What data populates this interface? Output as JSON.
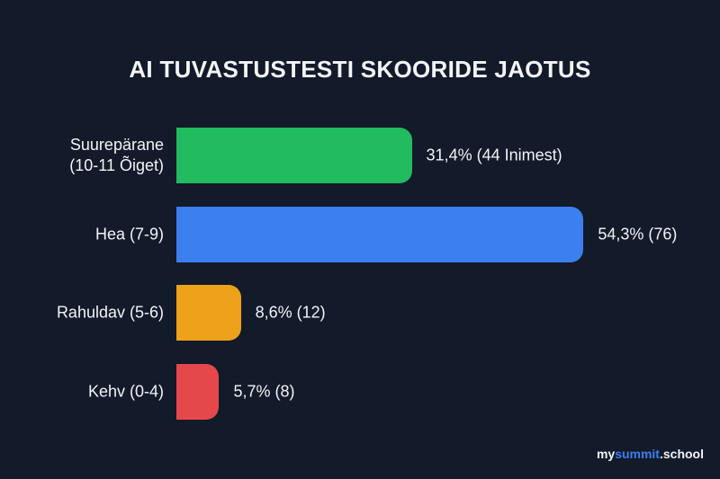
{
  "chart_data": {
    "type": "bar",
    "orientation": "horizontal",
    "title": "AI TUVASTUSTESTI SKOORIDE JAOTUS",
    "categories": [
      "Suurepärane\n(10-11 Õiget)",
      "Hea (7-9)",
      "Rahuldav (5-6)",
      "Kehv (0-4)"
    ],
    "values": [
      31.4,
      54.3,
      8.6,
      5.7
    ],
    "value_labels": [
      "31,4% (44 Inimest)",
      "54,3% (76)",
      "8,6% (12)",
      "5,7% (8)"
    ],
    "colors": [
      "#22bb5f",
      "#3b7ff0",
      "#eea11b",
      "#e5484a"
    ]
  },
  "watermark": [
    "my",
    "summit",
    ".school"
  ]
}
